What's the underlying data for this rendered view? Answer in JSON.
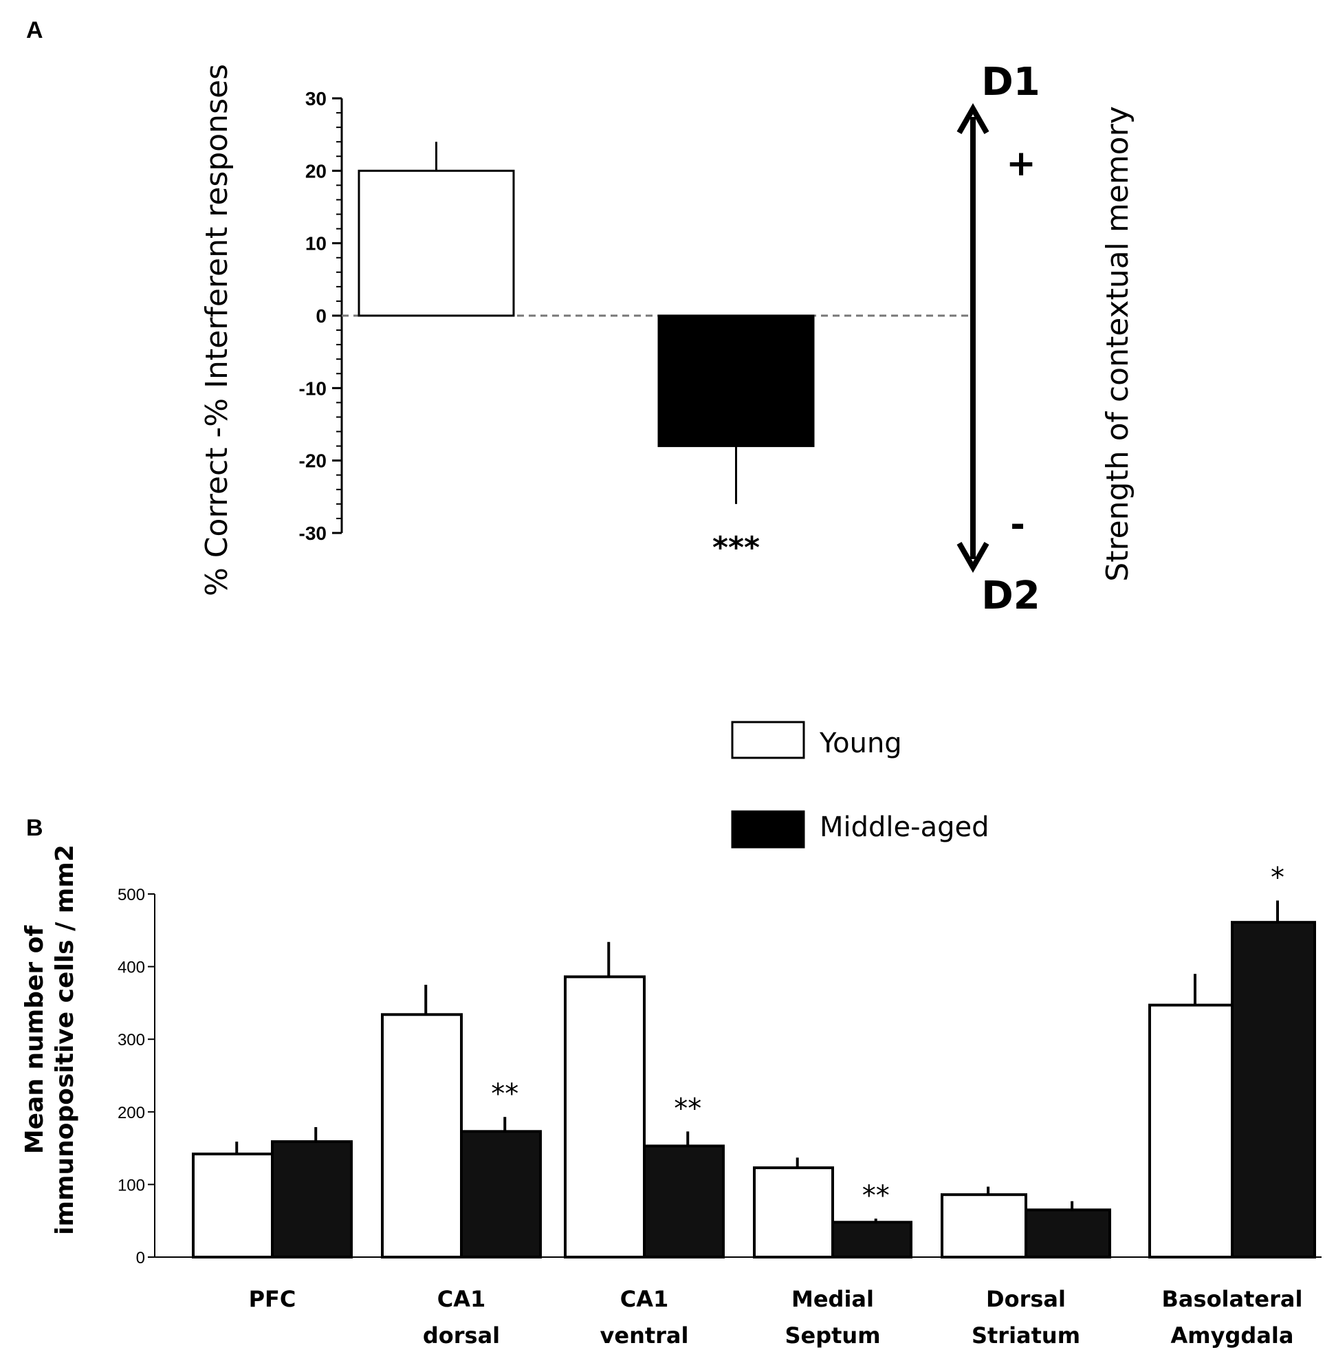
{
  "chart_data": [
    {
      "panel": "A",
      "type": "bar",
      "ylabel": "% Correct -% Interferent responses",
      "ylim": [
        -30,
        30
      ],
      "yticks": [
        30,
        20,
        10,
        0,
        -10,
        -20,
        -30
      ],
      "series": [
        {
          "name": "Young",
          "color": "#ffffff",
          "value": 20,
          "error": 4,
          "sig": ""
        },
        {
          "name": "Middle-aged",
          "color": "#000000",
          "value": -18,
          "error": 8,
          "sig": "***"
        }
      ],
      "annotation": {
        "top_label": "D1",
        "bottom_label": "D2",
        "plus": "+",
        "minus": "-",
        "axis_label": "Strength of contextual memory"
      }
    },
    {
      "panel": "B",
      "type": "bar",
      "ylabel_lines": [
        "Mean number of",
        "immunopositive cells / mm2"
      ],
      "ylim": [
        0,
        500
      ],
      "yticks": [
        500,
        400,
        300,
        200,
        100,
        0
      ],
      "categories": [
        {
          "lines": [
            "PFC",
            ""
          ]
        },
        {
          "lines": [
            "CA1",
            "dorsal"
          ]
        },
        {
          "lines": [
            "CA1",
            "ventral"
          ]
        },
        {
          "lines": [
            "Medial",
            "Septum"
          ]
        },
        {
          "lines": [
            "Dorsal",
            "Striatum"
          ]
        },
        {
          "lines": [
            "Basolateral",
            "Amygdala"
          ]
        }
      ],
      "series": [
        {
          "name": "Young",
          "color": "#ffffff",
          "values": [
            142,
            334,
            386,
            123,
            86,
            347
          ],
          "errors": [
            17,
            41,
            48,
            14,
            11,
            43
          ],
          "sig": [
            "",
            "",
            "",
            "",
            "",
            ""
          ]
        },
        {
          "name": "Middle-aged",
          "color": "#111111",
          "values": [
            159,
            173,
            153,
            48,
            65,
            461
          ],
          "errors": [
            20,
            20,
            20,
            5,
            12,
            30
          ],
          "sig": [
            "",
            "**",
            "**",
            "**",
            "",
            "*"
          ]
        }
      ]
    }
  ],
  "legend": [
    {
      "label": "Young",
      "color": "#ffffff"
    },
    {
      "label": "Middle-aged",
      "color": "#000000"
    }
  ],
  "panels": {
    "a": "A",
    "b": "B"
  }
}
